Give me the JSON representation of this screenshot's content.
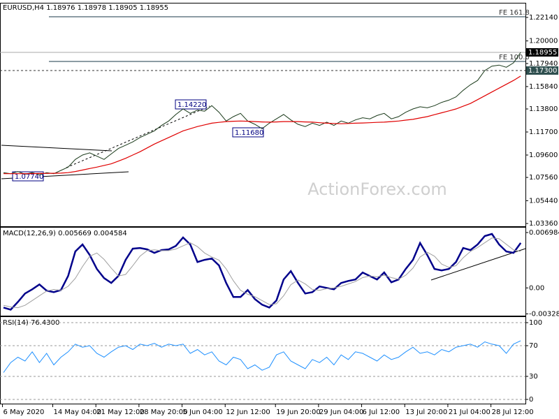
{
  "chart_data": [
    {
      "type": "line",
      "title": "EURUSD,H4  1.18976 1.18978 1.18905 1.18955",
      "watermark": "ActionForex.com",
      "ylim": [
        1.0311,
        1.2341
      ],
      "yticks": [
        {
          "value": 1.2214,
          "label": "1.22140"
        },
        {
          "value": 1.2,
          "label": "1.20000"
        },
        {
          "value": 1.1794,
          "label": "1.17940"
        },
        {
          "value": 1.1584,
          "label": "1.15840"
        },
        {
          "value": 1.138,
          "label": "1.13800"
        },
        {
          "value": 1.117,
          "label": "1.11700"
        },
        {
          "value": 1.096,
          "label": "1.09600"
        },
        {
          "value": 1.0756,
          "label": "1.07560"
        },
        {
          "value": 1.0544,
          "label": "1.05440"
        },
        {
          "value": 1.0336,
          "label": "1.03360"
        }
      ],
      "levels": [
        {
          "label": "FE 161.8",
          "value": 1.222
        },
        {
          "label": "FE 100.0",
          "value": 1.1813
        }
      ],
      "current_price": 1.18955,
      "marked_level": {
        "value": 1.173,
        "label": "1.17300"
      },
      "annotations": [
        "1.14220",
        "1.11680",
        "1.07740"
      ],
      "series": [
        {
          "color": "#1a3a1a",
          "values": [
            1.08,
            1.079,
            1.081,
            1.0785,
            1.08,
            1.078,
            1.08,
            1.079,
            1.082,
            1.085,
            1.092,
            1.096,
            1.098,
            1.095,
            1.092,
            1.097,
            1.102,
            1.105,
            1.108,
            1.112,
            1.115,
            1.118,
            1.123,
            1.127,
            1.133,
            1.138,
            1.134,
            1.137,
            1.136,
            1.141,
            1.135,
            1.127,
            1.131,
            1.134,
            1.127,
            1.124,
            1.12,
            1.125,
            1.129,
            1.133,
            1.128,
            1.124,
            1.122,
            1.125,
            1.123,
            1.126,
            1.123,
            1.127,
            1.125,
            1.128,
            1.13,
            1.129,
            1.132,
            1.134,
            1.129,
            1.131,
            1.135,
            1.138,
            1.14,
            1.139,
            1.141,
            1.144,
            1.146,
            1.149,
            1.155,
            1.16,
            1.164,
            1.173,
            1.177,
            1.178,
            1.176,
            1.18,
            1.1896
          ]
        },
        {
          "color": "#e00000",
          "values": [
            1.079,
            1.079,
            1.079,
            1.079,
            1.0791,
            1.0792,
            1.0793,
            1.0794,
            1.0795,
            1.08,
            1.081,
            1.0823,
            1.0837,
            1.085,
            1.0865,
            1.088,
            1.0905,
            1.093,
            1.096,
            1.099,
            1.1025,
            1.106,
            1.109,
            1.112,
            1.115,
            1.118,
            1.12,
            1.122,
            1.1235,
            1.125,
            1.1258,
            1.1265,
            1.1268,
            1.127,
            1.1268,
            1.1265,
            1.1262,
            1.126,
            1.1262,
            1.1265,
            1.1265,
            1.1265,
            1.1262,
            1.126,
            1.1255,
            1.125,
            1.1248,
            1.1245,
            1.1248,
            1.125,
            1.1252,
            1.1255,
            1.1258,
            1.126,
            1.1265,
            1.127,
            1.1278,
            1.1285,
            1.1298,
            1.131,
            1.1328,
            1.1345,
            1.1362,
            1.138,
            1.1405,
            1.143,
            1.1465,
            1.15,
            1.1535,
            1.157,
            1.1605,
            1.164,
            1.168
          ]
        }
      ]
    },
    {
      "type": "line",
      "title": "MACD(12,26,9) 0.005669 0.004584",
      "ylim": [
        -0.0035,
        0.0076
      ],
      "yticks": [
        0.006984,
        {
          "value": 0,
          "label": "0.00"
        },
        -0.00328
      ],
      "series": [
        {
          "color": "#00008b",
          "values": [
            -0.00248,
            -0.00274,
            -0.00177,
            -0.00071,
            -0.00018,
            0.00044,
            -0.00035,
            -0.00053,
            -0.00027,
            0.0015,
            0.0046,
            0.00548,
            0.00415,
            0.00239,
            0.00124,
            0.00062,
            0.0015,
            0.00354,
            0.00495,
            0.00504,
            0.00486,
            0.00442,
            0.00477,
            0.00486,
            0.0053,
            0.00636,
            0.00548,
            0.00327,
            0.00354,
            0.00371,
            0.00283,
            0.00062,
            -0.00115,
            -0.00115,
            -0.00027,
            -0.00141,
            -0.00212,
            -0.00248,
            -0.00159,
            0.00106,
            0.00212,
            0.00062,
            -0.00071,
            -0.00053,
            0.00018,
            0,
            -0.00018,
            0.00062,
            0.00088,
            0.00106,
            0.00194,
            0.0015,
            0.00106,
            0.00194,
            0.00071,
            0.00106,
            0.00239,
            0.00354,
            0.00566,
            0.00415,
            0.00239,
            0.00221,
            0.00239,
            0.00327,
            0.00504,
            0.00477,
            0.00548,
            0.00654,
            0.00681,
            0.00548,
            0.0046,
            0.00442,
            0.005669
          ]
        },
        {
          "color": "#a0a0a0",
          "values": [
            -0.0022,
            -0.0024,
            -0.0025,
            -0.0022,
            -0.0016,
            -0.001,
            -0.0004,
            -0.0002,
            -0.0003,
            0.0002,
            0.0012,
            0.0027,
            0.004,
            0.0044,
            0.0036,
            0.0025,
            0.0015,
            0.0017,
            0.0028,
            0.004,
            0.0047,
            0.0048,
            0.0047,
            0.0047,
            0.0049,
            0.0053,
            0.0057,
            0.0052,
            0.0044,
            0.0039,
            0.0035,
            0.0024,
            0.0009,
            -0.0003,
            -0.0008,
            -0.0011,
            -0.0016,
            -0.0021,
            -0.002,
            -0.001,
            0.0004,
            0.001,
            0.0005,
            -0.0002,
            -0.0003,
            -0.0001,
            0,
            0.0002,
            0.0005,
            0.0008,
            0.0013,
            0.0015,
            0.0014,
            0.0016,
            0.0013,
            0.0011,
            0.0016,
            0.0025,
            0.0039,
            0.0045,
            0.004,
            0.003,
            0.0026,
            0.0028,
            0.0038,
            0.0046,
            0.0051,
            0.0057,
            0.0063,
            0.0062,
            0.0055,
            0.0048,
            0.004584
          ]
        }
      ]
    },
    {
      "type": "line",
      "title": "RSI(14) 76.4300",
      "ylim": [
        -5.5,
        107.3
      ],
      "yticks": [
        100,
        70,
        30,
        0
      ],
      "grid": true,
      "categories": [
        null,
        null,
        "6 May 2020",
        null,
        null,
        null,
        null,
        null,
        null,
        "14 May 04:00",
        null,
        null,
        null,
        null,
        null,
        "21 May 12:00",
        null,
        null,
        null,
        null,
        null,
        "28 May 20:00",
        null,
        null,
        null,
        null,
        null,
        "5 Jun 04:00",
        null,
        null,
        null,
        null,
        null,
        "12 Jun 12:00",
        null,
        null,
        null,
        null,
        null,
        null,
        "19 Jun 20:00",
        null,
        null,
        null,
        null,
        null,
        "29 Jun 04:00",
        null,
        null,
        null,
        null,
        null,
        "6 Jul 12:00",
        null,
        null,
        null,
        null,
        null,
        "13 Jul 20:00",
        null,
        null,
        null,
        null,
        null,
        "21 Jul 04:00",
        null,
        null,
        null,
        null,
        null,
        "28 Jul 12:00",
        null,
        null
      ],
      "series": [
        {
          "color": "#1e90ff",
          "values": [
            35,
            48,
            55,
            50,
            62,
            48,
            60,
            45,
            55,
            62,
            72,
            68,
            70,
            60,
            55,
            62,
            68,
            70,
            65,
            72,
            70,
            73,
            68,
            72,
            70,
            72,
            60,
            65,
            58,
            62,
            50,
            45,
            55,
            52,
            40,
            45,
            38,
            42,
            58,
            62,
            50,
            45,
            40,
            52,
            48,
            55,
            45,
            58,
            52,
            62,
            60,
            55,
            50,
            58,
            52,
            55,
            62,
            68,
            60,
            62,
            58,
            65,
            62,
            68,
            70,
            72,
            68,
            75,
            72,
            70,
            60,
            72,
            76.43
          ]
        }
      ]
    }
  ]
}
